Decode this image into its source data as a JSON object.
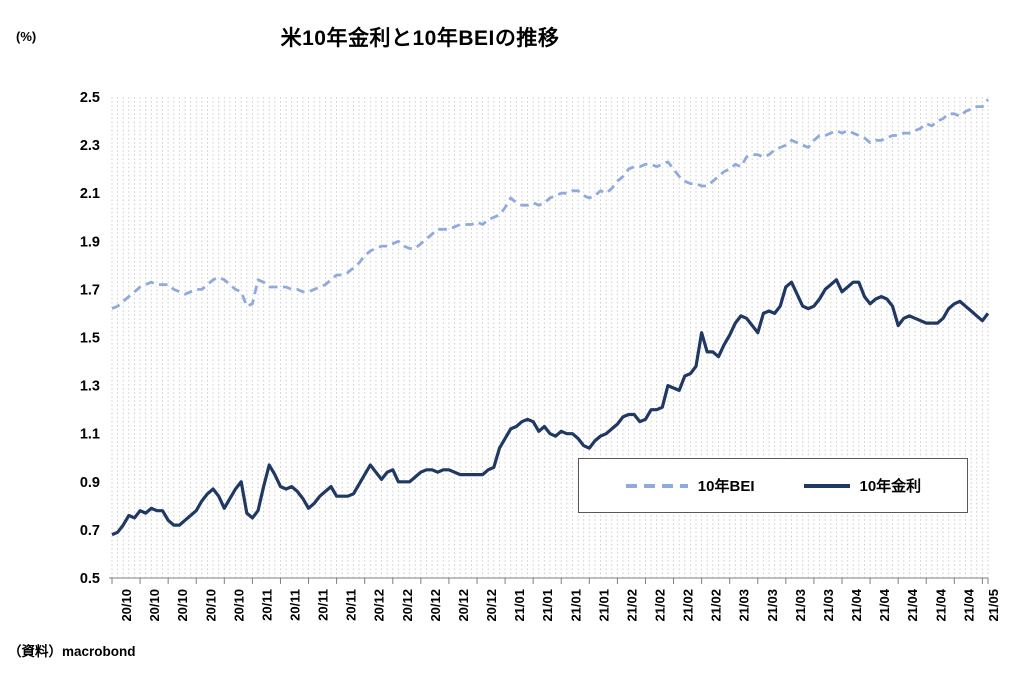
{
  "title": "米10年金利と10年BEIの推移",
  "unit_label": "(%)",
  "source": "（資料）macrobond",
  "legend": {
    "bei": "10年BEI",
    "rate": "10年金利"
  },
  "colors": {
    "bei": "#8faadc",
    "rate": "#1f3864",
    "grid": "#c6c6c6",
    "axis": "#808080",
    "legend_border": "#595959"
  },
  "chart_data": {
    "type": "line",
    "title": "米10年金利と10年BEIの推移",
    "ylabel": "(%)",
    "ylim": [
      0.5,
      2.5
    ],
    "y_tick_step": 0.2,
    "y_tick_labels": [
      "2.5",
      "2.3",
      "2.1",
      "1.9",
      "1.7",
      "1.5",
      "1.3",
      "1.1",
      "0.9",
      "0.7",
      "0.5"
    ],
    "grid": "vertical-dotted-daily",
    "legend_position": "inside-lower-right",
    "points_per_week": 5,
    "x_tick_labels": [
      "20/10",
      "20/10",
      "20/10",
      "20/10",
      "20/10",
      "20/11",
      "20/11",
      "20/11",
      "20/11",
      "20/12",
      "20/12",
      "20/12",
      "20/12",
      "20/12",
      "21/01",
      "21/01",
      "21/01",
      "21/01",
      "21/02",
      "21/02",
      "21/02",
      "21/02",
      "21/03",
      "21/03",
      "21/03",
      "21/03",
      "21/04",
      "21/04",
      "21/04",
      "21/04",
      "21/04",
      "21/05"
    ],
    "series": [
      {
        "name": "10年BEI",
        "style": "dashed",
        "color": "#8faadc",
        "values": [
          1.62,
          1.63,
          1.65,
          1.67,
          1.69,
          1.71,
          1.72,
          1.73,
          1.72,
          1.72,
          1.72,
          1.7,
          1.69,
          1.68,
          1.69,
          1.7,
          1.7,
          1.72,
          1.74,
          1.75,
          1.74,
          1.72,
          1.7,
          1.69,
          1.63,
          1.64,
          1.74,
          1.73,
          1.71,
          1.71,
          1.71,
          1.71,
          1.7,
          1.7,
          1.69,
          1.69,
          1.7,
          1.71,
          1.72,
          1.74,
          1.76,
          1.76,
          1.77,
          1.79,
          1.81,
          1.84,
          1.86,
          1.87,
          1.88,
          1.88,
          1.89,
          1.9,
          1.88,
          1.87,
          1.87,
          1.89,
          1.91,
          1.93,
          1.95,
          1.95,
          1.95,
          1.96,
          1.97,
          1.97,
          1.97,
          1.98,
          1.97,
          1.99,
          2.0,
          2.01,
          2.04,
          2.08,
          2.06,
          2.05,
          2.05,
          2.06,
          2.05,
          2.06,
          2.08,
          2.09,
          2.1,
          2.1,
          2.11,
          2.11,
          2.09,
          2.08,
          2.09,
          2.11,
          2.1,
          2.12,
          2.15,
          2.17,
          2.2,
          2.21,
          2.21,
          2.22,
          2.22,
          2.21,
          2.22,
          2.23,
          2.2,
          2.17,
          2.15,
          2.14,
          2.14,
          2.13,
          2.13,
          2.15,
          2.17,
          2.19,
          2.2,
          2.22,
          2.21,
          2.25,
          2.26,
          2.26,
          2.25,
          2.26,
          2.28,
          2.29,
          2.3,
          2.32,
          2.31,
          2.3,
          2.29,
          2.32,
          2.34,
          2.34,
          2.35,
          2.36,
          2.35,
          2.36,
          2.35,
          2.34,
          2.33,
          2.31,
          2.32,
          2.32,
          2.33,
          2.34,
          2.34,
          2.35,
          2.35,
          2.36,
          2.37,
          2.39,
          2.38,
          2.4,
          2.41,
          2.43,
          2.43,
          2.42,
          2.44,
          2.45,
          2.46,
          2.46,
          2.49
        ]
      },
      {
        "name": "10年金利",
        "style": "solid",
        "color": "#1f3864",
        "values": [
          0.68,
          0.69,
          0.72,
          0.76,
          0.75,
          0.78,
          0.77,
          0.79,
          0.78,
          0.78,
          0.74,
          0.72,
          0.72,
          0.74,
          0.76,
          0.78,
          0.82,
          0.85,
          0.87,
          0.84,
          0.79,
          0.83,
          0.87,
          0.9,
          0.77,
          0.75,
          0.78,
          0.88,
          0.97,
          0.93,
          0.88,
          0.87,
          0.88,
          0.86,
          0.83,
          0.79,
          0.81,
          0.84,
          0.86,
          0.88,
          0.84,
          0.84,
          0.84,
          0.85,
          0.89,
          0.93,
          0.97,
          0.94,
          0.91,
          0.94,
          0.95,
          0.9,
          0.9,
          0.9,
          0.92,
          0.94,
          0.95,
          0.95,
          0.94,
          0.95,
          0.95,
          0.94,
          0.93,
          0.93,
          0.93,
          0.93,
          0.93,
          0.95,
          0.96,
          1.04,
          1.08,
          1.12,
          1.13,
          1.15,
          1.16,
          1.15,
          1.11,
          1.13,
          1.1,
          1.09,
          1.11,
          1.1,
          1.1,
          1.08,
          1.05,
          1.04,
          1.07,
          1.09,
          1.1,
          1.12,
          1.14,
          1.17,
          1.18,
          1.18,
          1.15,
          1.16,
          1.2,
          1.2,
          1.21,
          1.3,
          1.29,
          1.28,
          1.34,
          1.35,
          1.38,
          1.52,
          1.44,
          1.44,
          1.42,
          1.47,
          1.51,
          1.56,
          1.59,
          1.58,
          1.55,
          1.52,
          1.6,
          1.61,
          1.6,
          1.63,
          1.71,
          1.73,
          1.68,
          1.63,
          1.62,
          1.63,
          1.66,
          1.7,
          1.72,
          1.74,
          1.69,
          1.71,
          1.73,
          1.73,
          1.67,
          1.64,
          1.66,
          1.67,
          1.66,
          1.63,
          1.55,
          1.58,
          1.59,
          1.58,
          1.57,
          1.56,
          1.56,
          1.56,
          1.58,
          1.62,
          1.64,
          1.65,
          1.63,
          1.61,
          1.59,
          1.57,
          1.6
        ]
      }
    ]
  }
}
